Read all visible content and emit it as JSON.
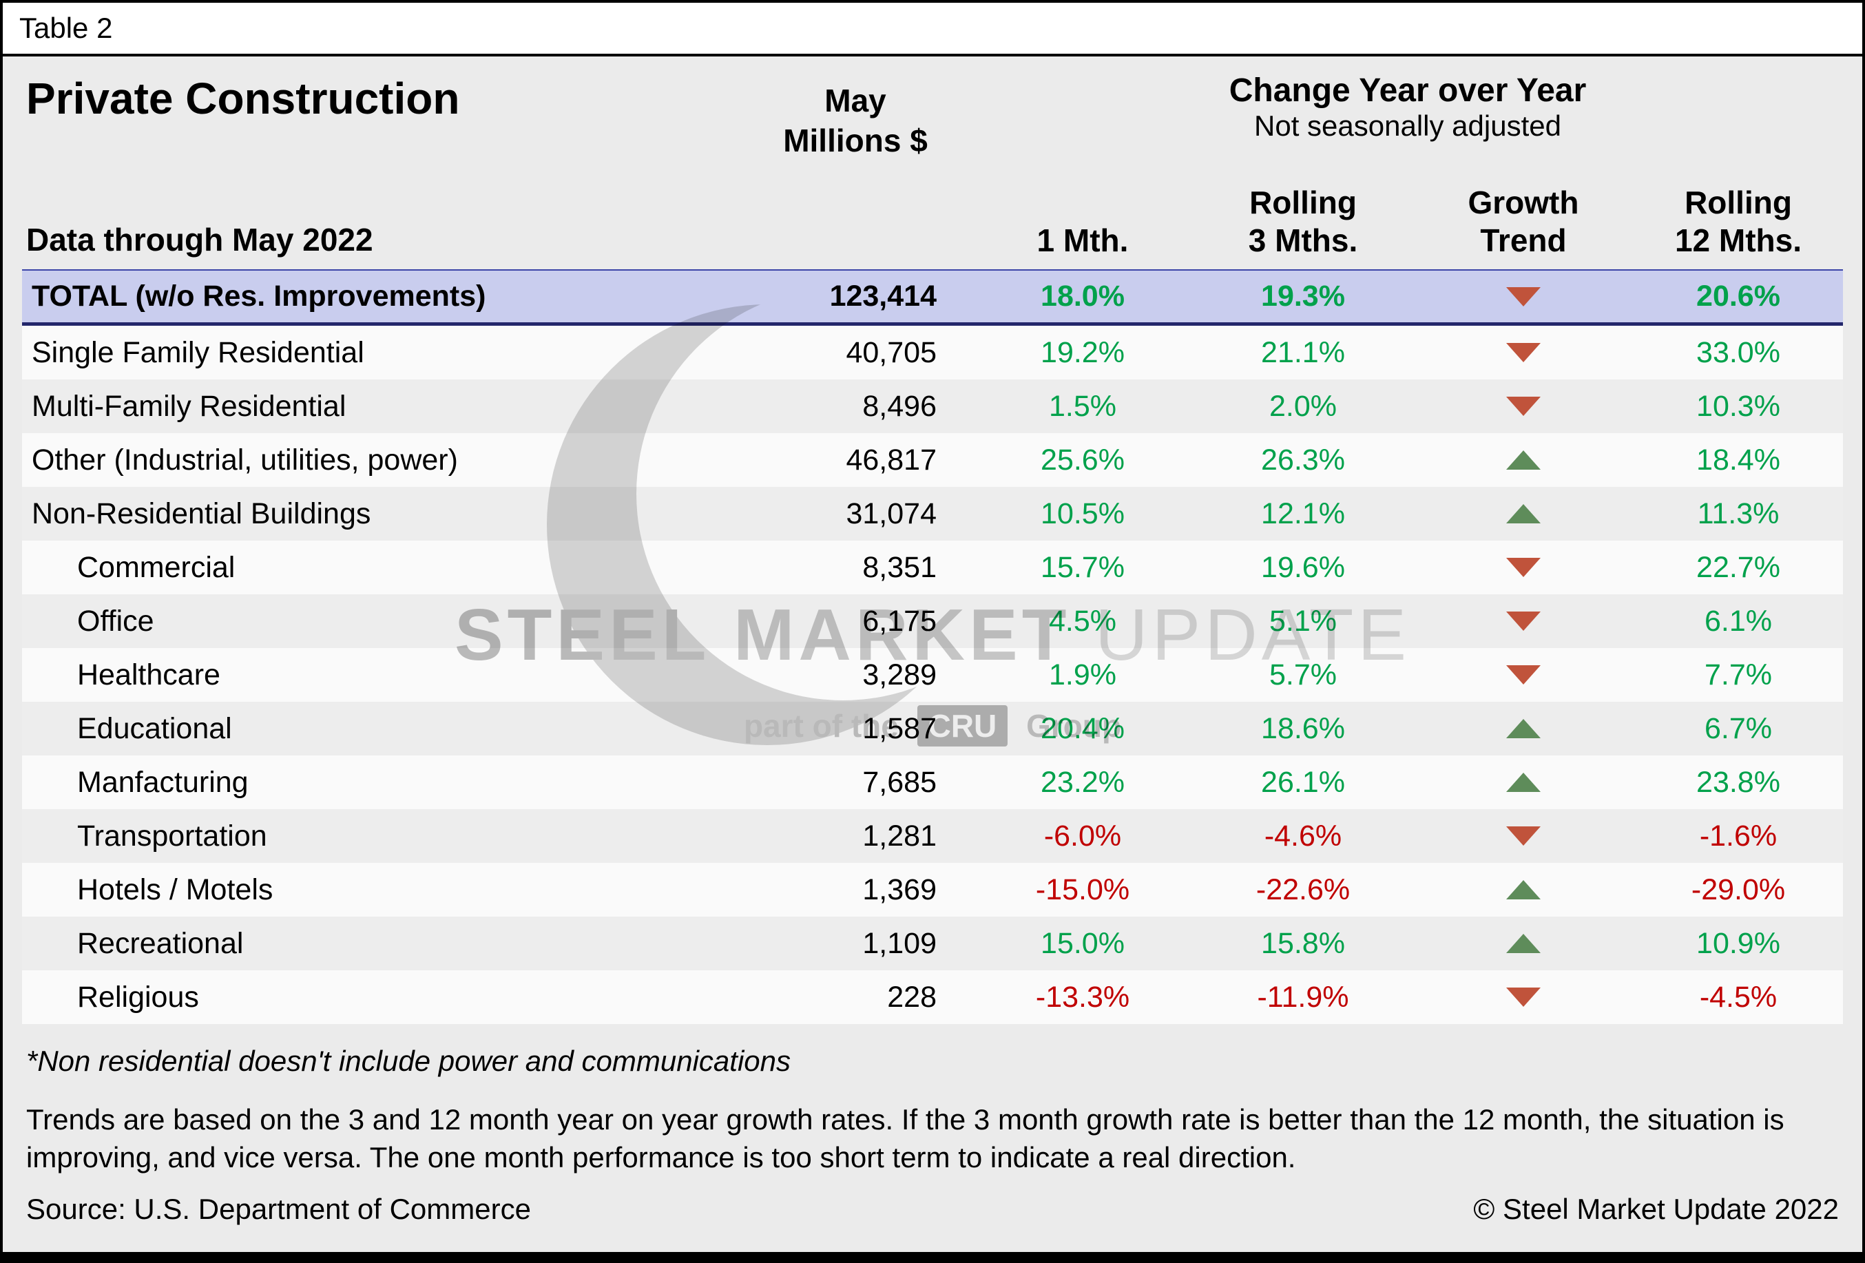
{
  "titlebar": {
    "label": "Table 2"
  },
  "header": {
    "title": "Private Construction",
    "subtitle": "Data through May 2022",
    "col_may_line1": "May",
    "col_may_line2": "Millions $",
    "group_header": "Change Year over Year",
    "group_subheader": "Not seasonally adjusted",
    "col_1mth": "1 Mth.",
    "col_rolling3_line1": "Rolling",
    "col_rolling3_line2": "3 Mths.",
    "col_growth_line1": "Growth",
    "col_growth_line2": "Trend",
    "col_rolling12_line1": "Rolling",
    "col_rolling12_line2": "12 Mths."
  },
  "chart_data": {
    "type": "table",
    "title": "Private Construction",
    "subtitle": "Data through May 2022",
    "columns": [
      "Category",
      "May Millions $",
      "1 Mth.",
      "Rolling 3 Mths.",
      "Growth Trend",
      "Rolling 12 Mths."
    ],
    "rows": [
      {
        "label": "TOTAL (w/o Res. Improvements)",
        "may_millions": "123,414",
        "one_mth": "18.0%",
        "rolling_3": "19.3%",
        "trend": "down",
        "rolling_12": "20.6%",
        "total": true,
        "indent": false
      },
      {
        "label": "Single Family Residential",
        "may_millions": "40,705",
        "one_mth": "19.2%",
        "rolling_3": "21.1%",
        "trend": "down",
        "rolling_12": "33.0%",
        "total": false,
        "indent": false
      },
      {
        "label": "Multi-Family Residential",
        "may_millions": "8,496",
        "one_mth": "1.5%",
        "rolling_3": "2.0%",
        "trend": "down",
        "rolling_12": "10.3%",
        "total": false,
        "indent": false
      },
      {
        "label": "Other (Industrial, utilities, power)",
        "may_millions": "46,817",
        "one_mth": "25.6%",
        "rolling_3": "26.3%",
        "trend": "up",
        "rolling_12": "18.4%",
        "total": false,
        "indent": false
      },
      {
        "label": "Non-Residential Buildings",
        "may_millions": "31,074",
        "one_mth": "10.5%",
        "rolling_3": "12.1%",
        "trend": "up",
        "rolling_12": "11.3%",
        "total": false,
        "indent": false
      },
      {
        "label": "Commercial",
        "may_millions": "8,351",
        "one_mth": "15.7%",
        "rolling_3": "19.6%",
        "trend": "down",
        "rolling_12": "22.7%",
        "total": false,
        "indent": true
      },
      {
        "label": "Office",
        "may_millions": "6,175",
        "one_mth": "4.5%",
        "rolling_3": "5.1%",
        "trend": "down",
        "rolling_12": "6.1%",
        "total": false,
        "indent": true
      },
      {
        "label": "Healthcare",
        "may_millions": "3,289",
        "one_mth": "1.9%",
        "rolling_3": "5.7%",
        "trend": "down",
        "rolling_12": "7.7%",
        "total": false,
        "indent": true
      },
      {
        "label": "Educational",
        "may_millions": "1,587",
        "one_mth": "20.4%",
        "rolling_3": "18.6%",
        "trend": "up",
        "rolling_12": "6.7%",
        "total": false,
        "indent": true
      },
      {
        "label": "Manfacturing",
        "may_millions": "7,685",
        "one_mth": "23.2%",
        "rolling_3": "26.1%",
        "trend": "up",
        "rolling_12": "23.8%",
        "total": false,
        "indent": true
      },
      {
        "label": "Transportation",
        "may_millions": "1,281",
        "one_mth": "-6.0%",
        "rolling_3": "-4.6%",
        "trend": "down",
        "rolling_12": "-1.6%",
        "total": false,
        "indent": true
      },
      {
        "label": "Hotels / Motels",
        "may_millions": "1,369",
        "one_mth": "-15.0%",
        "rolling_3": "-22.6%",
        "trend": "up",
        "rolling_12": "-29.0%",
        "total": false,
        "indent": true
      },
      {
        "label": "Recreational",
        "may_millions": "1,109",
        "one_mth": "15.0%",
        "rolling_3": "15.8%",
        "trend": "up",
        "rolling_12": "10.9%",
        "total": false,
        "indent": true
      },
      {
        "label": "Religious",
        "may_millions": "228",
        "one_mth": "-13.3%",
        "rolling_3": "-11.9%",
        "trend": "down",
        "rolling_12": "-4.5%",
        "total": false,
        "indent": true
      }
    ]
  },
  "notes": {
    "footnote": "*Non residential doesn't include power and communications",
    "trends": "Trends are based on the 3 and 12 month year on year growth rates. If the 3 month growth rate is better than the 12 month, the situation is improving, and vice versa. The one month performance is too short term to indicate a real direction."
  },
  "footer": {
    "source": "Source: U.S. Department of Commerce",
    "copyright": "© Steel Market Update 2022"
  },
  "watermark": {
    "word1": "STEEL",
    "word2": "MARKET",
    "word3": "UPDATE",
    "tag_pre": "part of the",
    "tag_box": "CRU",
    "tag_post": "Group"
  },
  "colors": {
    "positive": "#00A14B",
    "negative": "#C00000",
    "arrow_up": "#5E8C5A",
    "arrow_down": "#C0533B",
    "total_row_bg": "#C9CDEE",
    "total_row_border": "#23266B"
  }
}
